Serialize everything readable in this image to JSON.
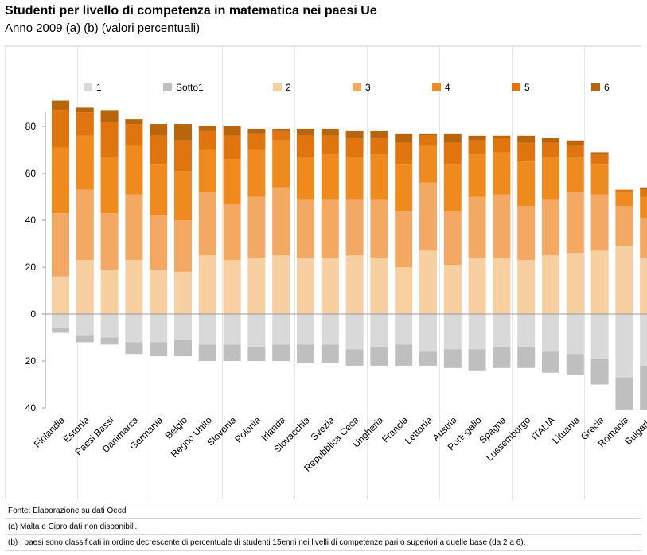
{
  "header": {
    "title": "Studenti per livello di competenza in matematica nei paesi Ue",
    "subtitle": "Anno 2009 (a) (b) (valori percentuali)"
  },
  "notes": {
    "source": "Fonte: Elaborazione su dati Oecd",
    "note_a": "(a) Malta e Cipro dati non disponibili.",
    "note_b": "(b) I paesi sono classificati in ordine decrescente di percentuale di studenti 15enni nei livelli di competenze pari o superiori a quelle base (da 2 a 6)."
  },
  "chart_data": {
    "type": "bar",
    "stacked": true,
    "legend_position": "top",
    "grid": false,
    "ylim": [
      -40,
      90
    ],
    "yticks": [
      {
        "value": 80,
        "label": "80"
      },
      {
        "value": 60,
        "label": "60"
      },
      {
        "value": 40,
        "label": "40"
      },
      {
        "value": 20,
        "label": "20"
      },
      {
        "value": 0,
        "label": "0"
      },
      {
        "value": -20,
        "label": "20"
      },
      {
        "value": -40,
        "label": "40"
      }
    ],
    "categories": [
      "Finlandia",
      "Estonia",
      "Paesi Bassi",
      "Danimarca",
      "Germania",
      "Belgio",
      "Regno Unito",
      "Slovenia",
      "Polonia",
      "Irlanda",
      "Slovacchia",
      "Svezia",
      "Repubblica Ceca",
      "Ungheria",
      "Francia",
      "Lettonia",
      "Austria",
      "Portogallo",
      "Spagna",
      "Lussemburgo",
      "ITALIA",
      "Lituania",
      "Grecia",
      "Romania",
      "Bulgaria"
    ],
    "series": [
      {
        "name": "1",
        "color": "#d9d9d9",
        "direction": "down",
        "values": [
          6,
          9,
          10,
          12,
          12,
          11,
          13,
          13,
          14,
          13,
          13,
          13,
          15,
          14,
          13,
          16,
          15,
          15,
          14,
          14,
          16,
          17,
          19,
          27,
          22
        ]
      },
      {
        "name": "Sotto1",
        "color": "#bfbfbf",
        "direction": "down",
        "values": [
          2,
          3,
          3,
          5,
          6,
          7,
          7,
          7,
          6,
          7,
          8,
          8,
          7,
          8,
          9,
          6,
          8,
          9,
          9,
          9,
          9,
          9,
          11,
          14,
          19
        ]
      },
      {
        "name": "2",
        "color": "#f7cfa0",
        "direction": "up",
        "values": [
          16,
          23,
          19,
          23,
          19,
          18,
          25,
          23,
          24,
          25,
          24,
          24,
          25,
          24,
          20,
          27,
          21,
          24,
          24,
          23,
          25,
          26,
          27,
          29,
          24
        ]
      },
      {
        "name": "3",
        "color": "#f3a863",
        "direction": "up",
        "values": [
          27,
          30,
          24,
          28,
          23,
          22,
          27,
          24,
          26,
          29,
          25,
          25,
          24,
          25,
          24,
          29,
          23,
          26,
          27,
          23,
          24,
          26,
          24,
          17,
          17
        ]
      },
      {
        "name": "4",
        "color": "#ee8a1e",
        "direction": "up",
        "values": [
          28,
          23,
          24,
          21,
          22,
          21,
          18,
          19,
          20,
          20,
          18,
          19,
          18,
          19,
          20,
          16,
          20,
          18,
          18,
          19,
          18,
          15,
          13,
          6,
          9
        ]
      },
      {
        "name": "5",
        "color": "#e07510",
        "direction": "up",
        "values": [
          16,
          10,
          15,
          9,
          12,
          13,
          8,
          10,
          7,
          4,
          9,
          8,
          8,
          7,
          9,
          4,
          9,
          6,
          6,
          8,
          6,
          5,
          4,
          1,
          3
        ]
      },
      {
        "name": "6",
        "color": "#b8650c",
        "direction": "up",
        "values": [
          4,
          2,
          5,
          2,
          5,
          7,
          2,
          4,
          2,
          1,
          3,
          3,
          3,
          3,
          4,
          1,
          4,
          2,
          1,
          3,
          2,
          2,
          1,
          0,
          1
        ]
      }
    ]
  }
}
